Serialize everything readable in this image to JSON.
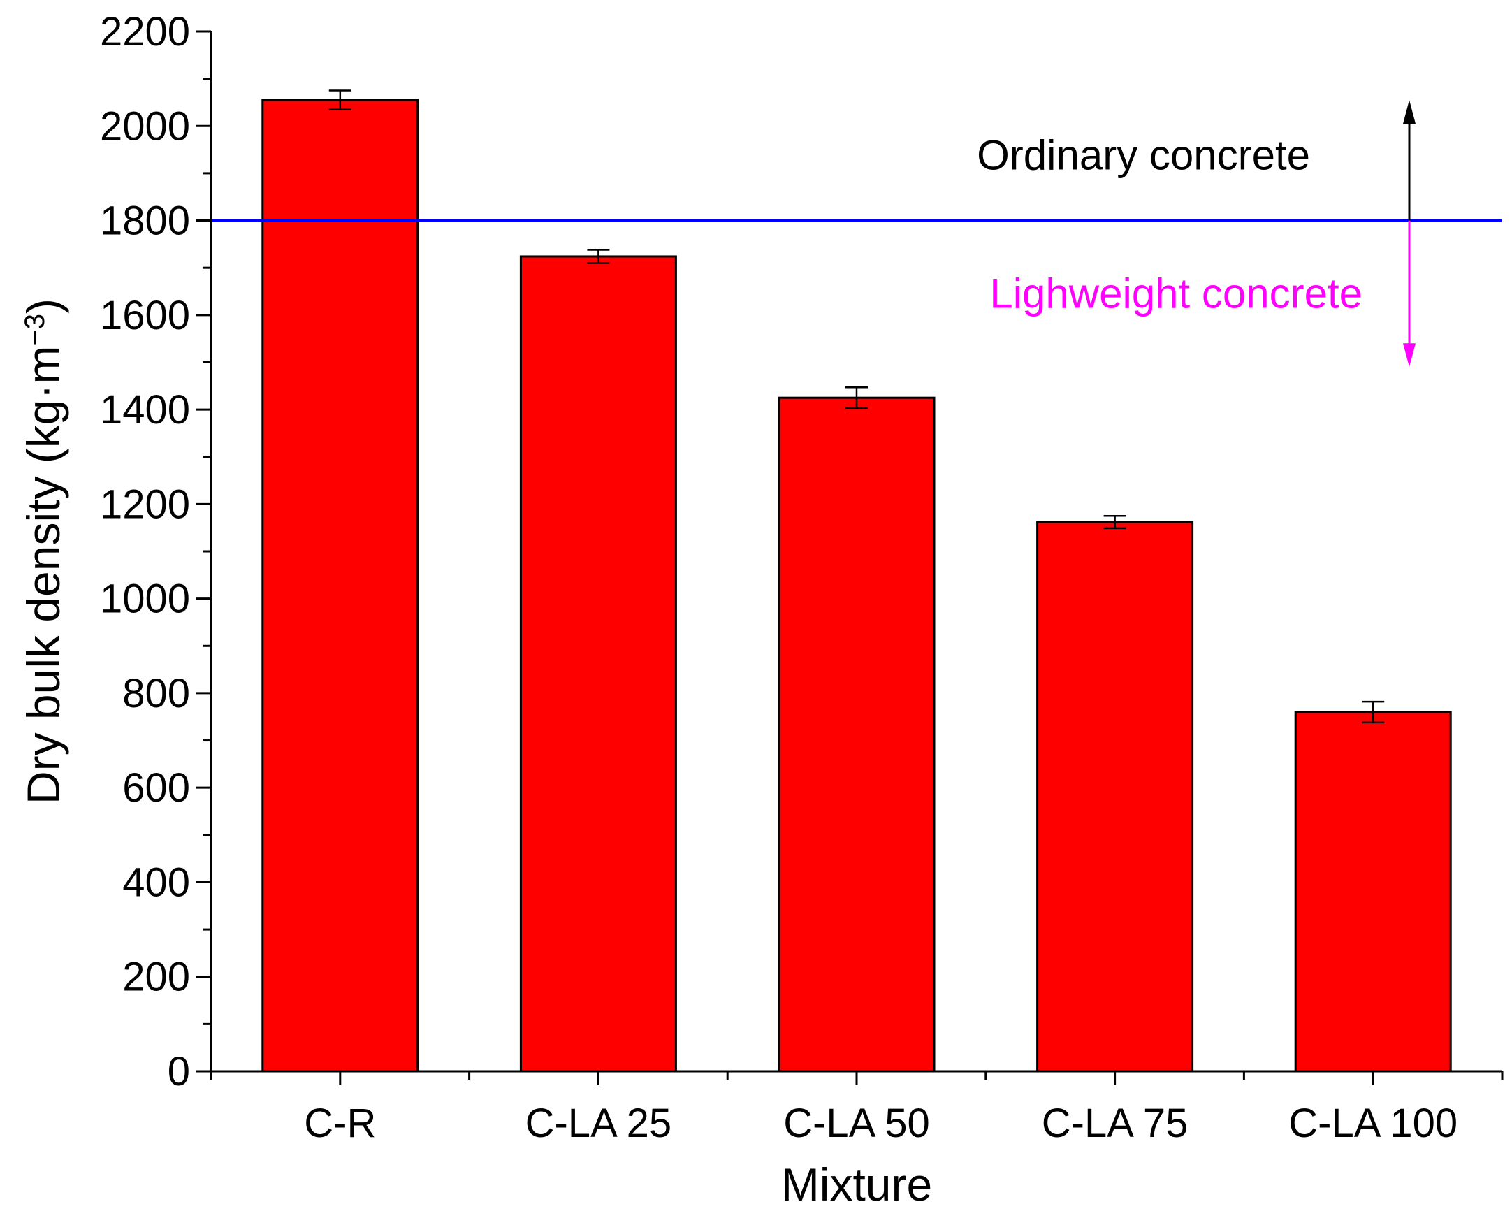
{
  "chart_data": {
    "type": "bar",
    "title": "",
    "xlabel": "Mixture",
    "ylabel": "Dry bulk density (kg·m",
    "ylabel_superscript": "−3",
    "ylabel_close": ")",
    "categories": [
      "C-R",
      "C-LA 25",
      "C-LA 50",
      "C-LA 75",
      "C-LA 100"
    ],
    "values": [
      2055,
      1724,
      1425,
      1162,
      760
    ],
    "errors": [
      20,
      14,
      22,
      13,
      22
    ],
    "ylim": [
      0,
      2200
    ],
    "yticks": [
      0,
      200,
      400,
      600,
      800,
      1000,
      1200,
      1400,
      1600,
      1800,
      2000,
      2200
    ],
    "grid": false,
    "bar_color": "#ff0000",
    "threshold": {
      "value": 1800,
      "color": "#0000ff"
    },
    "annotations": {
      "upper": {
        "text": "Ordinary concrete",
        "color": "#000000",
        "arrow_to": 2055
      },
      "lower": {
        "text": "Lighweight concrete",
        "color": "#ff00ff",
        "arrow_to": 1490
      }
    }
  }
}
